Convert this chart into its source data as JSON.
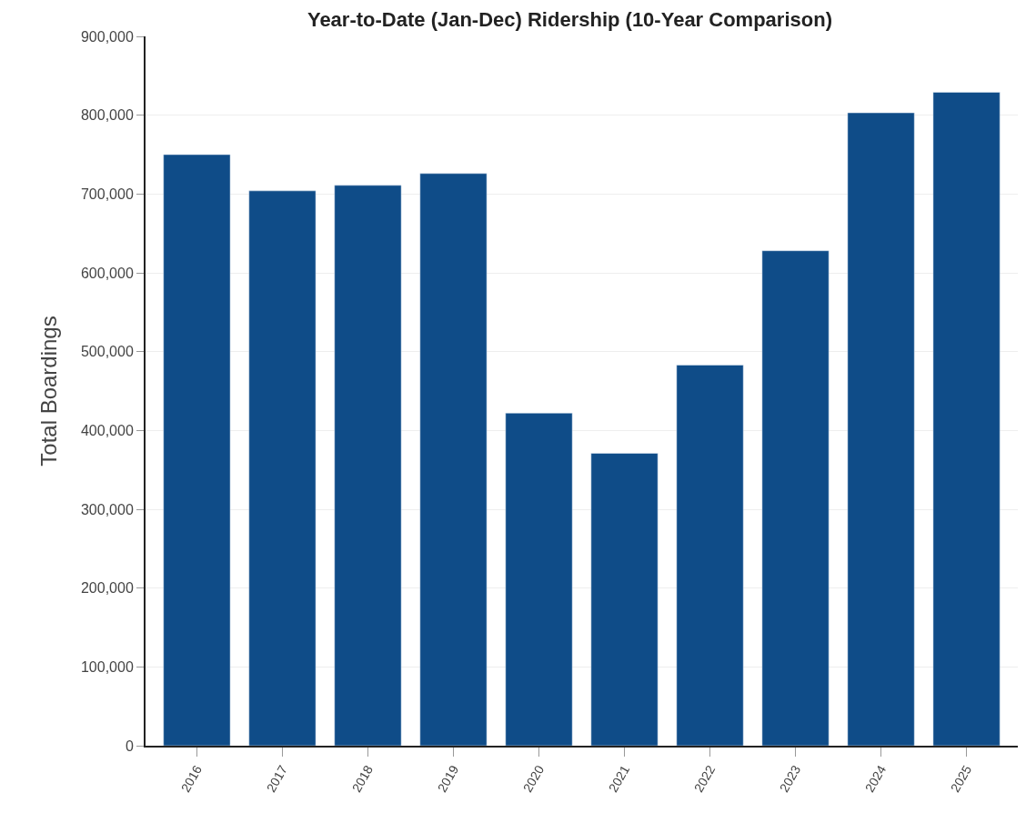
{
  "chart_data": {
    "type": "bar",
    "title": "Year-to-Date (Jan-Dec) Ridership (10-Year Comparison)",
    "ylabel": "Total Boardings",
    "categories": [
      "2016",
      "2017",
      "2018",
      "2019",
      "2020",
      "2021",
      "2022",
      "2023",
      "2024",
      "2025"
    ],
    "values": [
      750000,
      704000,
      711000,
      726000,
      422000,
      371000,
      483000,
      628000,
      803000,
      829000
    ],
    "color": "#0f4c88",
    "ylim": [
      0,
      900000
    ],
    "yticks": [
      {
        "value": 0,
        "label": "0"
      },
      {
        "value": 100000,
        "label": "100,000"
      },
      {
        "value": 200000,
        "label": "200,000"
      },
      {
        "value": 300000,
        "label": "300,000"
      },
      {
        "value": 400000,
        "label": "400,000"
      },
      {
        "value": 500000,
        "label": "500,000"
      },
      {
        "value": 600000,
        "label": "600,000"
      },
      {
        "value": 700000,
        "label": "700,000"
      },
      {
        "value": 800000,
        "label": "800,000"
      },
      {
        "value": 900000,
        "label": "900,000"
      }
    ],
    "grid": "y"
  }
}
